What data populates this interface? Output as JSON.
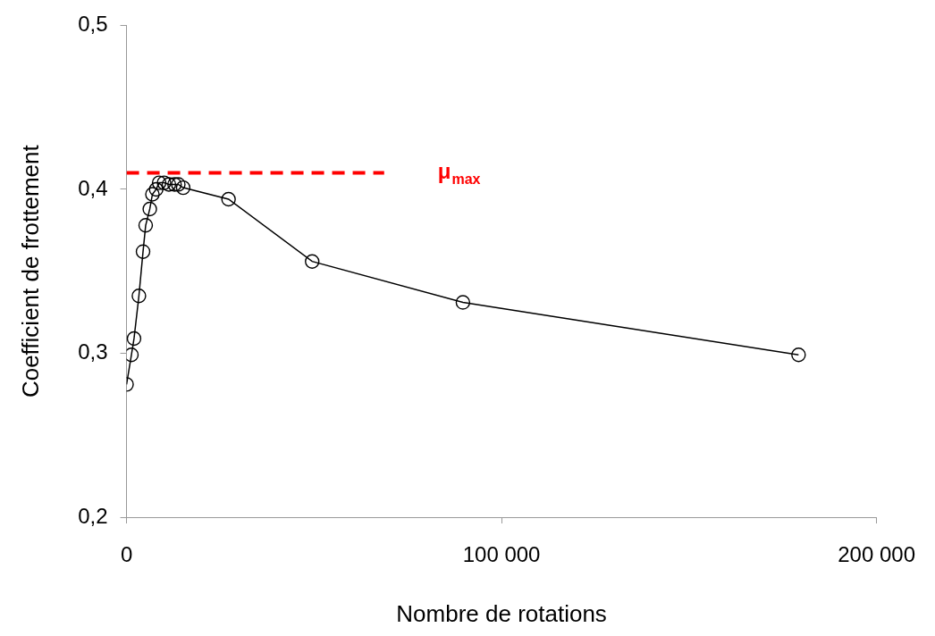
{
  "chart_data": {
    "type": "line",
    "x_label": "Nombre de rotations",
    "y_label": "Coefficient de frottement",
    "x": [
      0,
      1300,
      2000,
      3300,
      4400,
      5100,
      6200,
      6900,
      7900,
      8700,
      10000,
      11300,
      12800,
      13800,
      15100,
      27200,
      49500,
      89700,
      179200
    ],
    "values": [
      0.281,
      0.299,
      0.309,
      0.335,
      0.362,
      0.378,
      0.388,
      0.397,
      0.4,
      0.404,
      0.404,
      0.403,
      0.403,
      0.403,
      0.401,
      0.394,
      0.356,
      0.331,
      0.299
    ],
    "color": "#000000",
    "marker": "circle",
    "line_style": "solid",
    "xlim": [
      0,
      200000
    ],
    "xticks": [
      0,
      {
        "value": 100000,
        "label": "100 000"
      },
      {
        "value": 200000,
        "label": "200 000"
      }
    ],
    "ylim": [
      0.2,
      0.5
    ],
    "yticks": [
      {
        "value": 0.2,
        "label": "0,2"
      },
      {
        "value": 0.3,
        "label": "0,3"
      },
      {
        "value": 0.4,
        "label": "0,4"
      },
      {
        "value": 0.5,
        "label": "0,5"
      }
    ],
    "grid": false,
    "reference_line": {
      "y": 0.41,
      "x": [
        0,
        68700
      ],
      "color": "#ff0000",
      "line_style": "dashed",
      "label": "μ",
      "label_subscript": "max"
    }
  }
}
